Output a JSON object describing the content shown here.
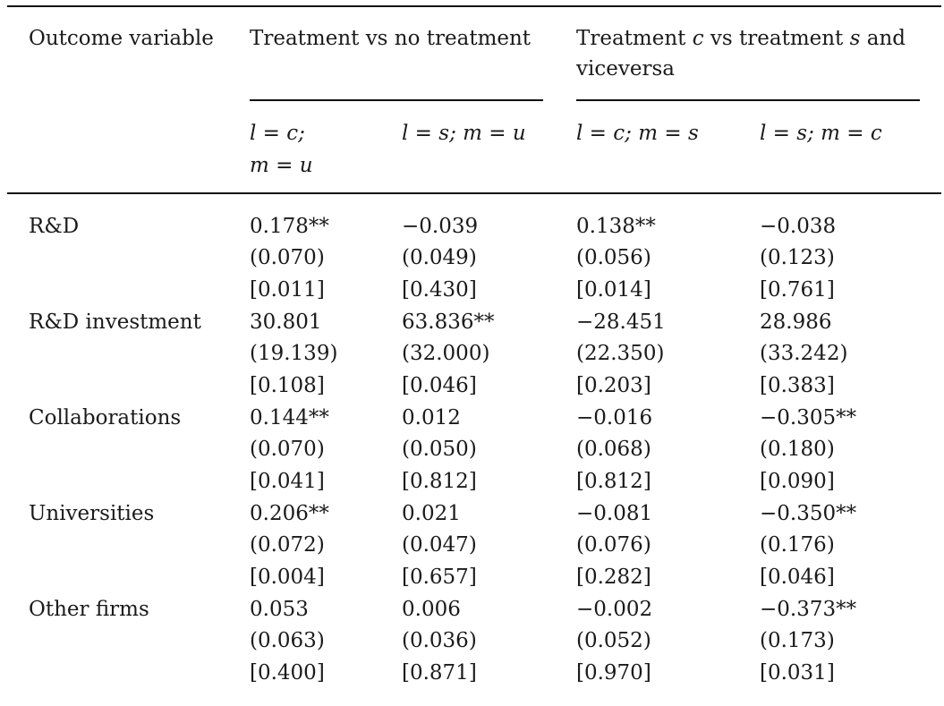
{
  "header": {
    "outcome_label": "Outcome variable",
    "group1_label": "Treatment vs no treatment",
    "group2_line1_pre": "Treatment ",
    "group2_line1_c": "c",
    "group2_line1_mid": " vs treatment ",
    "group2_line1_s": "s",
    "group2_line1_post": " and",
    "group2_line2": "viceversa",
    "subcol1": {
      "l_var": "l",
      "eq": " = ",
      "l_val": "c;",
      "m_var": "m",
      "m_val": "u"
    },
    "subcol2": {
      "l_var": "l",
      "eq": " = ",
      "l_val": "s;",
      "m_var": "m",
      "m_val": "u"
    },
    "subcol3": {
      "l_var": "l",
      "eq": " = ",
      "l_val": "c;",
      "m_var": "m",
      "m_val": "s"
    },
    "subcol4": {
      "l_var": "l",
      "eq": " = ",
      "l_val": "s;",
      "m_var": "m",
      "m_val": "c"
    }
  },
  "rows": [
    {
      "label": "R&D",
      "cells": [
        [
          "0.178**",
          "(0.070)",
          "[0.011]"
        ],
        [
          "−0.039",
          "(0.049)",
          "[0.430]"
        ],
        [
          "0.138**",
          "(0.056)",
          "[0.014]"
        ],
        [
          "−0.038",
          "(0.123)",
          "[0.761]"
        ]
      ]
    },
    {
      "label": "R&D investment",
      "cells": [
        [
          "30.801",
          "(19.139)",
          "[0.108]"
        ],
        [
          "63.836**",
          "(32.000)",
          "[0.046]"
        ],
        [
          "−28.451",
          "(22.350)",
          "[0.203]"
        ],
        [
          "28.986",
          "(33.242)",
          "[0.383]"
        ]
      ]
    },
    {
      "label": "Collaborations",
      "cells": [
        [
          "0.144**",
          "(0.070)",
          "[0.041]"
        ],
        [
          "0.012",
          "(0.050)",
          "[0.812]"
        ],
        [
          "−0.016",
          "(0.068)",
          "[0.812]"
        ],
        [
          "−0.305**",
          "(0.180)",
          "[0.090]"
        ]
      ]
    },
    {
      "label": "Universities",
      "cells": [
        [
          "0.206**",
          "(0.072)",
          "[0.004]"
        ],
        [
          "0.021",
          "(0.047)",
          "[0.657]"
        ],
        [
          "−0.081",
          "(0.076)",
          "[0.282]"
        ],
        [
          "−0.350**",
          "(0.176)",
          "[0.046]"
        ]
      ]
    },
    {
      "label": "Other firms",
      "cells": [
        [
          "0.053",
          "(0.063)",
          "[0.400]"
        ],
        [
          "0.006",
          "(0.036)",
          "[0.871]"
        ],
        [
          "−0.002",
          "(0.052)",
          "[0.970]"
        ],
        [
          "−0.373**",
          "(0.173)",
          "[0.031]"
        ]
      ]
    }
  ]
}
